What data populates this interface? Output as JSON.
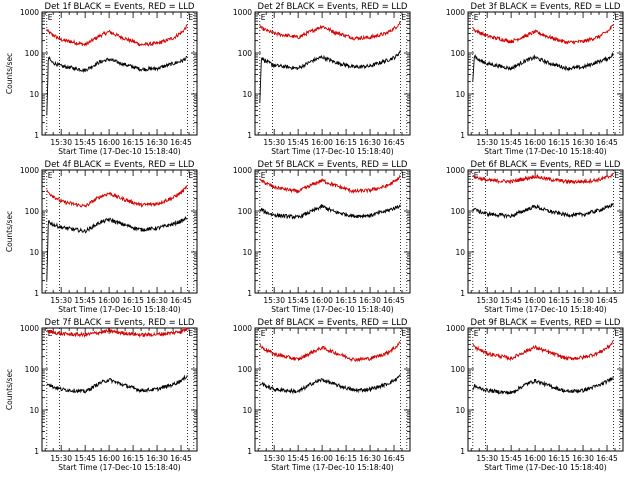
{
  "chart_data": [
    {
      "type": "line",
      "title": "Det 1f BLACK = Events, RED = LLD",
      "xlabel": "Start Time (17-Dec-10 15:18:40)",
      "ylabel": "Counts/sec",
      "yscale": "log",
      "ylim": [
        1,
        1000
      ],
      "xlim": [
        "15:18",
        "16:55"
      ],
      "xticks": [
        "15:30",
        "15:45",
        "16:00",
        "16:15",
        "16:30",
        "16:45"
      ],
      "yticks": [
        "1",
        "10",
        "100",
        "1000"
      ],
      "vlines": [
        "15:21",
        "15:29",
        "16:49",
        "16:53"
      ],
      "gap_marks": "E",
      "series": [
        {
          "color": "#d40000",
          "x": [
            "15:21",
            "15:22",
            "15:30",
            "15:45",
            "15:54",
            "16:00",
            "16:08",
            "16:20",
            "16:30",
            "16:40",
            "16:46",
            "16:49"
          ],
          "y": [
            380,
            320,
            210,
            160,
            260,
            330,
            240,
            160,
            170,
            230,
            330,
            470
          ]
        },
        {
          "color": "#000000",
          "x": [
            "15:21",
            "15:22",
            "15:24",
            "15:30",
            "15:45",
            "15:54",
            "16:00",
            "16:08",
            "16:20",
            "16:30",
            "16:40",
            "16:46",
            "16:49"
          ],
          "y": [
            3,
            80,
            60,
            48,
            38,
            60,
            70,
            55,
            40,
            42,
            55,
            65,
            78
          ]
        }
      ]
    },
    {
      "type": "line",
      "title": "Det 2f BLACK = Events, RED = LLD",
      "xlabel": "Start Time (17-Dec-10 15:18:40)",
      "ylabel": "",
      "yscale": "log",
      "ylim": [
        1,
        1000
      ],
      "xlim": [
        "15:18",
        "16:55"
      ],
      "xticks": [
        "15:30",
        "15:45",
        "16:00",
        "16:15",
        "16:30",
        "16:45"
      ],
      "yticks": [
        "1",
        "10",
        "100",
        "1000"
      ],
      "vlines": [
        "15:21",
        "15:29",
        "16:49",
        "16:53"
      ],
      "gap_marks": "E",
      "series": [
        {
          "color": "#d40000",
          "x": [
            "15:21",
            "15:22",
            "15:30",
            "15:45",
            "15:54",
            "16:00",
            "16:08",
            "16:20",
            "16:30",
            "16:40",
            "16:46",
            "16:49"
          ],
          "y": [
            480,
            400,
            300,
            240,
            350,
            450,
            320,
            230,
            240,
            300,
            420,
            560
          ]
        },
        {
          "color": "#000000",
          "x": [
            "15:21",
            "15:22",
            "15:24",
            "15:30",
            "15:45",
            "15:54",
            "16:00",
            "16:08",
            "16:20",
            "16:30",
            "16:40",
            "16:46",
            "16:49"
          ],
          "y": [
            6,
            80,
            65,
            50,
            42,
            65,
            80,
            60,
            45,
            48,
            65,
            80,
            110
          ]
        }
      ]
    },
    {
      "type": "line",
      "title": "Det 3f BLACK = Events, RED = LLD",
      "xlabel": "Start Time (17-Dec-10 15:18:40)",
      "ylabel": "",
      "yscale": "log",
      "ylim": [
        1,
        1000
      ],
      "xlim": [
        "15:18",
        "16:55"
      ],
      "xticks": [
        "15:30",
        "15:45",
        "16:00",
        "16:15",
        "16:30",
        "16:45"
      ],
      "yticks": [
        "1",
        "10",
        "100",
        "1000"
      ],
      "vlines": [
        "15:21",
        "15:29",
        "16:49",
        "16:53"
      ],
      "gap_marks": "E",
      "series": [
        {
          "color": "#d40000",
          "x": [
            "15:21",
            "15:22",
            "15:30",
            "15:45",
            "15:54",
            "16:00",
            "16:08",
            "16:20",
            "16:30",
            "16:40",
            "16:46",
            "16:49"
          ],
          "y": [
            420,
            360,
            260,
            190,
            260,
            330,
            250,
            180,
            190,
            250,
            350,
            480
          ]
        },
        {
          "color": "#000000",
          "x": [
            "15:21",
            "15:22",
            "15:24",
            "15:30",
            "15:45",
            "15:54",
            "16:00",
            "16:08",
            "16:20",
            "16:30",
            "16:40",
            "16:46",
            "16:49"
          ],
          "y": [
            20,
            90,
            70,
            55,
            42,
            65,
            78,
            58,
            42,
            45,
            62,
            75,
            95
          ]
        }
      ]
    },
    {
      "type": "line",
      "title": "Det 4f BLACK = Events, RED = LLD",
      "xlabel": "Start Time (17-Dec-10 15:18:40)",
      "ylabel": "Counts/sec",
      "yscale": "log",
      "ylim": [
        1,
        1000
      ],
      "xlim": [
        "15:18",
        "16:55"
      ],
      "xticks": [
        "15:30",
        "15:45",
        "16:00",
        "16:15",
        "16:30",
        "16:45"
      ],
      "yticks": [
        "1",
        "10",
        "100",
        "1000"
      ],
      "vlines": [
        "15:21",
        "15:29",
        "16:49",
        "16:53"
      ],
      "gap_marks": "E",
      "series": [
        {
          "color": "#d40000",
          "x": [
            "15:21",
            "15:22",
            "15:30",
            "15:45",
            "15:54",
            "16:00",
            "16:08",
            "16:20",
            "16:30",
            "16:40",
            "16:46",
            "16:49"
          ],
          "y": [
            330,
            280,
            170,
            130,
            220,
            270,
            200,
            140,
            150,
            210,
            300,
            400
          ]
        },
        {
          "color": "#000000",
          "x": [
            "15:21",
            "15:22",
            "15:24",
            "15:30",
            "15:45",
            "15:54",
            "16:00",
            "16:08",
            "16:20",
            "16:30",
            "16:40",
            "16:46",
            "16:49"
          ],
          "y": [
            2,
            60,
            48,
            40,
            32,
            52,
            62,
            48,
            35,
            38,
            48,
            58,
            70
          ]
        }
      ]
    },
    {
      "type": "line",
      "title": "Det 5f BLACK = Events, RED = LLD",
      "xlabel": "Start Time (17-Dec-10 15:18:40)",
      "ylabel": "",
      "yscale": "log",
      "ylim": [
        1,
        1000
      ],
      "xlim": [
        "15:18",
        "16:55"
      ],
      "xticks": [
        "15:30",
        "15:45",
        "16:00",
        "16:15",
        "16:30",
        "16:45"
      ],
      "yticks": [
        "1",
        "10",
        "100",
        "1000"
      ],
      "vlines": [
        "15:21",
        "15:29",
        "16:49",
        "16:53"
      ],
      "gap_marks": "E",
      "series": [
        {
          "color": "#d40000",
          "x": [
            "15:21",
            "15:22",
            "15:30",
            "15:45",
            "15:54",
            "16:00",
            "16:08",
            "16:20",
            "16:30",
            "16:40",
            "16:46",
            "16:49"
          ],
          "y": [
            620,
            540,
            380,
            300,
            440,
            560,
            420,
            300,
            320,
            400,
            540,
            700
          ]
        },
        {
          "color": "#000000",
          "x": [
            "15:21",
            "15:22",
            "15:24",
            "15:30",
            "15:45",
            "15:54",
            "16:00",
            "16:08",
            "16:20",
            "16:30",
            "16:40",
            "16:46",
            "16:49"
          ],
          "y": [
            100,
            110,
            95,
            80,
            70,
            100,
            130,
            95,
            75,
            78,
            100,
            120,
            140
          ]
        }
      ]
    },
    {
      "type": "line",
      "title": "Det 6f BLACK = Events, RED = LLD",
      "xlabel": "Start Time (17-Dec-10 15:18:40)",
      "ylabel": "",
      "yscale": "log",
      "ylim": [
        1,
        1000
      ],
      "xlim": [
        "15:18",
        "16:55"
      ],
      "xticks": [
        "15:30",
        "15:45",
        "16:00",
        "16:15",
        "16:30",
        "16:45"
      ],
      "yticks": [
        "1",
        "10",
        "100",
        "1000"
      ],
      "vlines": [
        "15:21",
        "15:29",
        "16:49",
        "16:53"
      ],
      "gap_marks": "E",
      "series": [
        {
          "color": "#d40000",
          "x": [
            "15:21",
            "15:22",
            "15:30",
            "15:45",
            "15:54",
            "16:00",
            "16:08",
            "16:20",
            "16:30",
            "16:40",
            "16:46",
            "16:49"
          ],
          "y": [
            750,
            680,
            560,
            520,
            620,
            700,
            600,
            520,
            520,
            580,
            680,
            800
          ]
        },
        {
          "color": "#000000",
          "x": [
            "15:21",
            "15:22",
            "15:24",
            "15:30",
            "15:45",
            "15:54",
            "16:00",
            "16:08",
            "16:20",
            "16:30",
            "16:40",
            "16:46",
            "16:49"
          ],
          "y": [
            100,
            120,
            100,
            85,
            75,
            105,
            130,
            100,
            80,
            82,
            105,
            125,
            150
          ]
        }
      ]
    },
    {
      "type": "line",
      "title": "Det 7f BLACK = Events, RED = LLD",
      "xlabel": "Start Time (17-Dec-10 15:18:40)",
      "ylabel": "Counts/sec",
      "yscale": "log",
      "ylim": [
        1,
        1000
      ],
      "xlim": [
        "15:18",
        "16:55"
      ],
      "xticks": [
        "15:30",
        "15:45",
        "16:00",
        "16:15",
        "16:30",
        "16:45"
      ],
      "yticks": [
        "1",
        "10",
        "100",
        "1000"
      ],
      "vlines": [
        "15:21",
        "15:29",
        "16:49",
        "16:53"
      ],
      "gap_marks": "E",
      "series": [
        {
          "color": "#d40000",
          "x": [
            "15:21",
            "15:22",
            "15:30",
            "15:45",
            "15:54",
            "16:00",
            "16:08",
            "16:20",
            "16:30",
            "16:40",
            "16:46",
            "16:49"
          ],
          "y": [
            900,
            820,
            720,
            680,
            780,
            850,
            760,
            680,
            700,
            760,
            860,
            950
          ]
        },
        {
          "color": "#000000",
          "x": [
            "15:21",
            "15:22",
            "15:24",
            "15:30",
            "15:45",
            "15:54",
            "16:00",
            "16:08",
            "16:20",
            "16:30",
            "16:40",
            "16:46",
            "16:49"
          ],
          "y": [
            40,
            45,
            38,
            32,
            28,
            45,
            55,
            42,
            30,
            32,
            42,
            55,
            70
          ]
        }
      ]
    },
    {
      "type": "line",
      "title": "Det 8f BLACK = Events, RED = LLD",
      "xlabel": "Start Time (17-Dec-10 15:18:40)",
      "ylabel": "",
      "yscale": "log",
      "ylim": [
        1,
        1000
      ],
      "xlim": [
        "15:18",
        "16:55"
      ],
      "xticks": [
        "15:30",
        "15:45",
        "16:00",
        "16:15",
        "16:30",
        "16:45"
      ],
      "yticks": [
        "1",
        "10",
        "100",
        "1000"
      ],
      "vlines": [
        "15:21",
        "15:29",
        "16:49",
        "16:53"
      ],
      "gap_marks": "E",
      "series": [
        {
          "color": "#d40000",
          "x": [
            "15:21",
            "15:22",
            "15:30",
            "15:45",
            "15:54",
            "16:00",
            "16:08",
            "16:20",
            "16:30",
            "16:40",
            "16:46",
            "16:49"
          ],
          "y": [
            420,
            340,
            230,
            170,
            260,
            330,
            250,
            170,
            180,
            240,
            340,
            460
          ]
        },
        {
          "color": "#000000",
          "x": [
            "15:21",
            "15:22",
            "15:24",
            "15:30",
            "15:45",
            "15:54",
            "16:00",
            "16:08",
            "16:20",
            "16:30",
            "16:40",
            "16:46",
            "16:49"
          ],
          "y": [
            40,
            45,
            40,
            32,
            28,
            45,
            55,
            42,
            30,
            32,
            42,
            55,
            70
          ]
        }
      ]
    },
    {
      "type": "line",
      "title": "Det 9f BLACK = Events, RED = LLD",
      "xlabel": "Start Time (17-Dec-10 15:18:40)",
      "ylabel": "",
      "yscale": "log",
      "ylim": [
        1,
        1000
      ],
      "xlim": [
        "15:18",
        "16:55"
      ],
      "xticks": [
        "15:30",
        "15:45",
        "16:00",
        "16:15",
        "16:30",
        "16:45"
      ],
      "yticks": [
        "1",
        "10",
        "100",
        "1000"
      ],
      "vlines": [
        "15:21",
        "15:29",
        "16:49",
        "16:53"
      ],
      "gap_marks": "E",
      "series": [
        {
          "color": "#d40000",
          "x": [
            "15:21",
            "15:22",
            "15:30",
            "15:45",
            "15:54",
            "16:00",
            "16:08",
            "16:20",
            "16:30",
            "16:40",
            "16:46",
            "16:49"
          ],
          "y": [
            420,
            340,
            240,
            180,
            270,
            340,
            260,
            180,
            190,
            250,
            350,
            470
          ]
        },
        {
          "color": "#000000",
          "x": [
            "15:21",
            "15:22",
            "15:24",
            "15:30",
            "15:45",
            "15:54",
            "16:00",
            "16:08",
            "16:20",
            "16:30",
            "16:40",
            "16:46",
            "16:49"
          ],
          "y": [
            30,
            40,
            35,
            30,
            26,
            42,
            52,
            40,
            28,
            30,
            40,
            52,
            65
          ]
        }
      ]
    }
  ]
}
